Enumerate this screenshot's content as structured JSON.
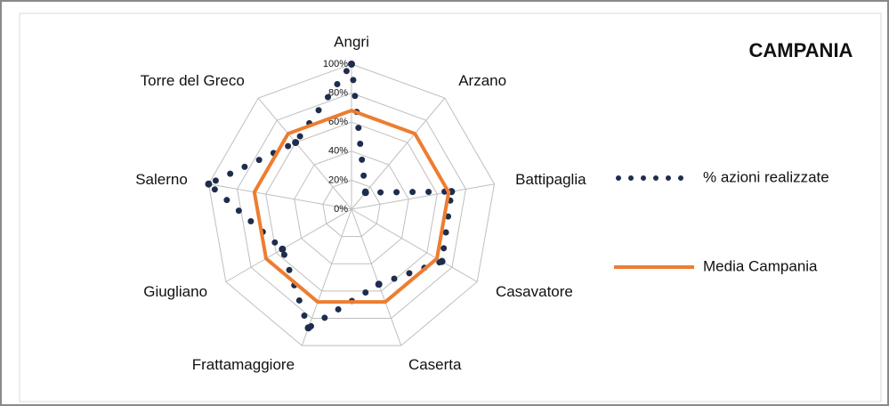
{
  "chart_data": {
    "type": "radar",
    "title": "CAMPANIA",
    "categories": [
      "Angri",
      "Arzano",
      "Battipaglia",
      "Casavatore",
      "Caserta",
      "Frattamaggiore",
      "Giugliano",
      "Salerno",
      "Torre del Greco"
    ],
    "series": [
      {
        "name": "% azioni realizzate",
        "color": "#1f2d4d",
        "style": "dotted",
        "values": [
          100,
          15,
          70,
          72,
          55,
          87,
          55,
          100,
          60
        ]
      },
      {
        "name": "Media Campania",
        "color": "#ed7d31",
        "style": "solid",
        "values": [
          68,
          68,
          68,
          68,
          68,
          68,
          68,
          68,
          68
        ]
      }
    ],
    "ylim": [
      0,
      100
    ],
    "yticks": [
      {
        "value": 0,
        "label": "0%"
      },
      {
        "value": 20,
        "label": "20%"
      },
      {
        "value": 40,
        "label": "40%"
      },
      {
        "value": 60,
        "label": "60%"
      },
      {
        "value": 80,
        "label": "80%"
      },
      {
        "value": 100,
        "label": "100%"
      }
    ],
    "grid": true,
    "legend": "right"
  }
}
